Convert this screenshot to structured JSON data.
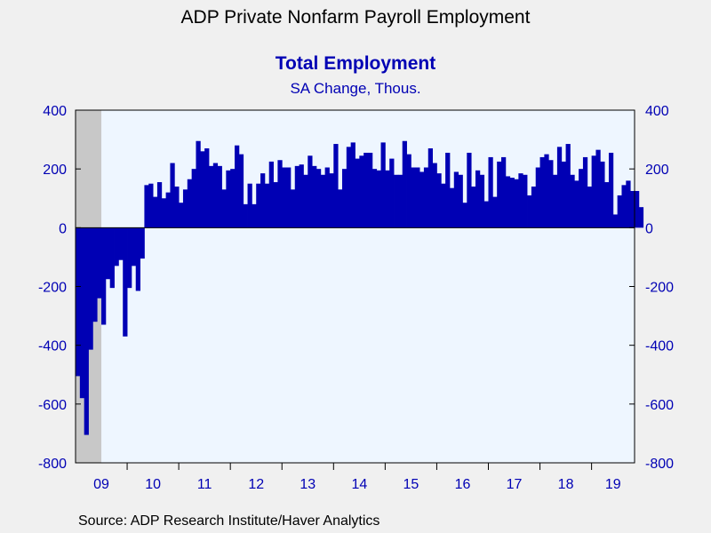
{
  "title": "ADP Private Nonfarm Payroll Employment",
  "subtitle": "Total Employment",
  "unit_label": "SA Change, Thous.",
  "source": "Source:  ADP Research Institute/Haver Analytics",
  "colors": {
    "bar": "#0000b4",
    "axis_text": "#0000b4",
    "plot_bg": "#eef6ff",
    "recession": "#c8c8c8"
  },
  "chart_data": {
    "type": "bar",
    "title": "ADP Private Nonfarm Payroll Employment",
    "subtitle": "Total Employment",
    "ylabel": "SA Change, Thous.",
    "ylim": [
      -800,
      400
    ],
    "yticks": [
      400,
      200,
      0,
      -200,
      -400,
      -600,
      -800
    ],
    "ytick_labels": [
      "400",
      "200",
      "0",
      "-200",
      "-400",
      "-600",
      "-800"
    ],
    "x_tick_labels": [
      "09",
      "10",
      "11",
      "12",
      "13",
      "14",
      "15",
      "16",
      "17",
      "18",
      "19"
    ],
    "x_start": "2009-01",
    "x_end": "2019-10",
    "recession_shading": {
      "start": "2009-01",
      "end": "2009-06"
    },
    "series": [
      {
        "values": [
          -505,
          -580,
          -705,
          -415,
          -320,
          -240,
          -330,
          -175,
          -205,
          -130,
          -110,
          -370,
          -205,
          -130,
          -215,
          -105,
          145,
          150,
          105,
          155,
          100,
          120,
          220,
          140,
          85,
          130,
          165,
          200,
          295,
          260,
          270,
          210,
          220,
          210,
          130,
          195,
          200,
          280,
          250,
          80,
          150,
          80,
          150,
          185,
          150,
          225,
          155,
          230,
          205,
          205,
          130,
          210,
          215,
          180,
          245,
          210,
          200,
          180,
          205,
          185,
          285,
          130,
          200,
          275,
          290,
          235,
          245,
          255,
          255,
          200,
          195,
          290,
          195,
          235,
          180,
          180,
          295,
          250,
          205,
          205,
          190,
          205,
          270,
          220,
          185,
          150,
          255,
          135,
          190,
          180,
          85,
          255,
          140,
          195,
          180,
          90,
          240,
          105,
          225,
          240,
          175,
          170,
          165,
          185,
          180,
          110,
          140,
          205,
          240,
          250,
          230,
          180,
          275,
          225,
          285,
          180,
          160,
          200,
          240,
          140,
          245,
          265,
          225,
          155,
          255,
          45,
          110,
          145,
          160,
          125,
          125,
          70
        ]
      }
    ]
  }
}
